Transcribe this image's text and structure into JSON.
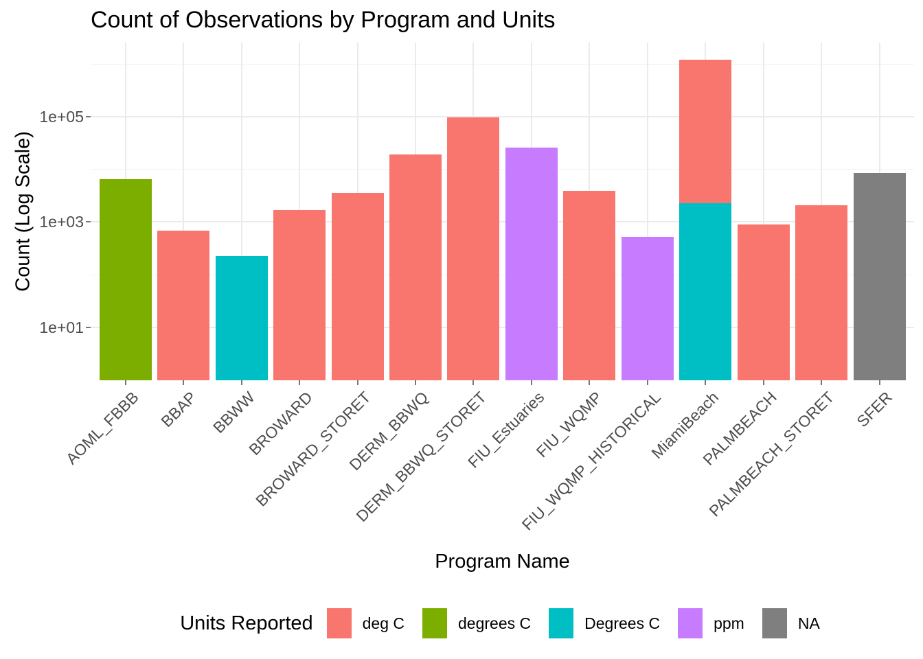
{
  "title": "Count of Observations by Program and Units",
  "x_axis": {
    "label": "Program Name"
  },
  "y_axis": {
    "label": "Count (Log Scale)",
    "tick_labels": [
      "1e+05",
      "1e+03",
      "1e+01"
    ]
  },
  "legend": {
    "title": "Units Reported",
    "entries": [
      {
        "label": "deg C",
        "color": "#F8766D"
      },
      {
        "label": "degrees C",
        "color": "#7CAE00"
      },
      {
        "label": "Degrees C",
        "color": "#00BFC4"
      },
      {
        "label": "ppm",
        "color": "#C77CFF"
      },
      {
        "label": "NA",
        "color": "#7F7F7F"
      }
    ]
  },
  "chart_data": {
    "type": "bar",
    "title": "Count of Observations by Program and Units",
    "xlabel": "Program Name",
    "ylabel": "Count (Log Scale)",
    "y_scale": "log10",
    "grid": true,
    "legend_position": "bottom",
    "legend_title": "Units Reported",
    "y_axis_ticks": [
      {
        "label": "1e+01",
        "value": 10
      },
      {
        "label": "1e+03",
        "value": 1000
      },
      {
        "label": "1e+05",
        "value": 100000
      }
    ],
    "y_minor_gridline_values": [
      100,
      10000,
      1000000
    ],
    "y_range_approx": [
      1,
      2300000
    ],
    "units_colors": {
      "deg C": "#F8766D",
      "degrees C": "#7CAE00",
      "Degrees C": "#00BFC4",
      "ppm": "#C77CFF",
      "NA": "#7F7F7F"
    },
    "categories": [
      "AOML_FBBB",
      "BBAP",
      "BBWW",
      "BROWARD",
      "BROWARD_STORET",
      "DERM_BBWQ",
      "DERM_BBWQ_STORET",
      "FIU_Estuaries",
      "FIU_WQMP",
      "FIU_WQMP_HISTORICAL",
      "MiamiBeach",
      "PALMBEACH",
      "PALMBEACH_STORET",
      "SFER"
    ],
    "bars": [
      {
        "program": "AOML_FBBB",
        "segments": [
          {
            "units": "degrees C",
            "value": 6500
          }
        ]
      },
      {
        "program": "BBAP",
        "segments": [
          {
            "units": "deg C",
            "value": 680
          }
        ]
      },
      {
        "program": "BBWW",
        "segments": [
          {
            "units": "Degrees C",
            "value": 225
          }
        ]
      },
      {
        "program": "BROWARD",
        "segments": [
          {
            "units": "deg C",
            "value": 1700
          }
        ]
      },
      {
        "program": "BROWARD_STORET",
        "segments": [
          {
            "units": "deg C",
            "value": 3600
          }
        ]
      },
      {
        "program": "DERM_BBWQ",
        "segments": [
          {
            "units": "deg C",
            "value": 19000
          }
        ]
      },
      {
        "program": "DERM_BBWQ_STORET",
        "segments": [
          {
            "units": "deg C",
            "value": 96000
          }
        ]
      },
      {
        "program": "FIU_Estuaries",
        "segments": [
          {
            "units": "ppm",
            "value": 26000
          }
        ]
      },
      {
        "program": "FIU_WQMP",
        "segments": [
          {
            "units": "deg C",
            "value": 3900
          }
        ]
      },
      {
        "program": "FIU_WQMP_HISTORICAL",
        "segments": [
          {
            "units": "ppm",
            "value": 520
          }
        ]
      },
      {
        "program": "MiamiBeach",
        "segments": [
          {
            "units": "Degrees C",
            "value": 2300
          },
          {
            "units": "deg C",
            "value": 1218000
          }
        ]
      },
      {
        "program": "PALMBEACH",
        "segments": [
          {
            "units": "deg C",
            "value": 900
          }
        ]
      },
      {
        "program": "PALMBEACH_STORET",
        "segments": [
          {
            "units": "deg C",
            "value": 2100
          }
        ]
      },
      {
        "program": "SFER",
        "segments": [
          {
            "units": "NA",
            "value": 8400
          }
        ]
      }
    ]
  }
}
